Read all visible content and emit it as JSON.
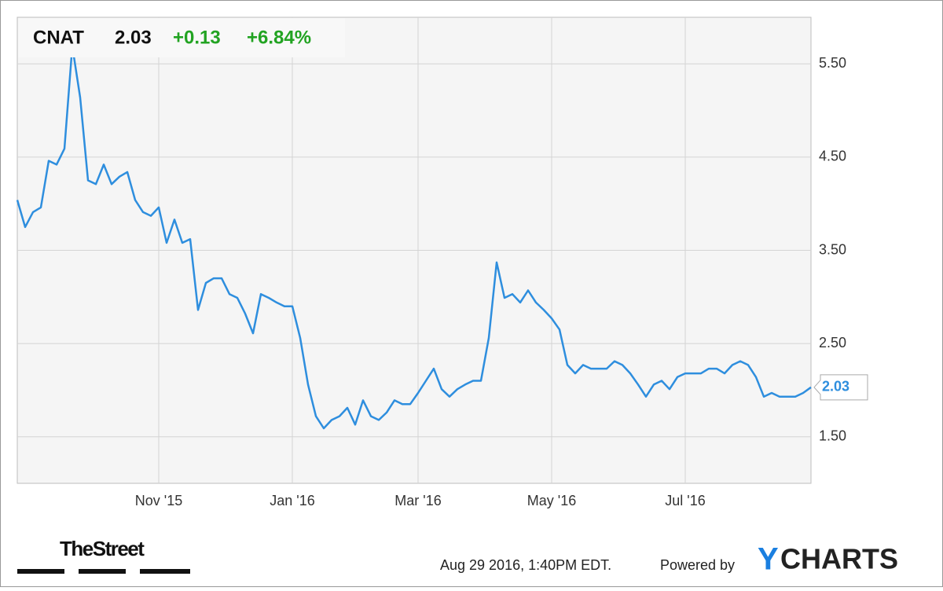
{
  "chart_data": {
    "type": "line",
    "header": {
      "ticker": "CNAT",
      "price": "2.03",
      "change": "+0.13",
      "change_percent": "+6.84%"
    },
    "categories": [
      null,
      null,
      null,
      null,
      null,
      null,
      null,
      null,
      null,
      null,
      null,
      null,
      null,
      null,
      null,
      null,
      null,
      null,
      "Nov '15",
      null,
      null,
      null,
      null,
      null,
      null,
      null,
      null,
      null,
      null,
      null,
      null,
      null,
      null,
      null,
      null,
      "Jan '16",
      null,
      null,
      null,
      null,
      null,
      null,
      null,
      null,
      null,
      null,
      null,
      null,
      null,
      null,
      null,
      "Mar '16",
      null,
      null,
      null,
      null,
      null,
      null,
      null,
      null,
      null,
      null,
      null,
      null,
      null,
      null,
      null,
      null,
      "May '16",
      null,
      null,
      null,
      null,
      null,
      null,
      null,
      null,
      null,
      null,
      null,
      null,
      null,
      null,
      null,
      null,
      "Jul '16",
      null,
      null,
      null,
      null,
      null,
      null,
      null,
      null,
      null,
      null,
      null,
      null,
      null,
      null,
      null,
      null
    ],
    "series": [
      {
        "name": "CNAT",
        "color": "#2e8ede",
        "values": [
          4.04,
          3.75,
          3.91,
          3.96,
          4.46,
          4.42,
          4.59,
          5.69,
          5.14,
          4.25,
          4.21,
          4.42,
          4.21,
          4.29,
          4.34,
          4.04,
          3.91,
          3.87,
          3.96,
          3.58,
          3.83,
          3.58,
          3.62,
          2.86,
          3.15,
          3.2,
          3.2,
          3.03,
          2.99,
          2.82,
          2.61,
          3.03,
          2.99,
          2.94,
          2.9,
          2.9,
          2.56,
          2.06,
          1.72,
          1.59,
          1.68,
          1.72,
          1.81,
          1.63,
          1.89,
          1.72,
          1.68,
          1.76,
          1.89,
          1.85,
          1.85,
          1.97,
          2.1,
          2.23,
          2.01,
          1.93,
          2.01,
          2.06,
          2.1,
          2.1,
          2.56,
          3.37,
          2.99,
          3.03,
          2.94,
          3.07,
          2.94,
          2.86,
          2.77,
          2.65,
          2.27,
          2.18,
          2.27,
          2.23,
          2.23,
          2.23,
          2.31,
          2.27,
          2.18,
          2.06,
          1.93,
          2.06,
          2.1,
          2.01,
          2.14,
          2.18,
          2.18,
          2.18,
          2.23,
          2.23,
          2.18,
          2.27,
          2.31,
          2.27,
          2.14,
          1.93,
          1.97,
          1.93,
          1.93,
          1.93,
          1.97,
          2.03
        ]
      }
    ],
    "ylim": [
      1,
      6
    ],
    "yticks": [
      {
        "value": 1.5,
        "label": "1.50"
      },
      {
        "value": 2.5,
        "label": "2.50"
      },
      {
        "value": 3.5,
        "label": "3.50"
      },
      {
        "value": 4.5,
        "label": "4.50"
      },
      {
        "value": 5.5,
        "label": "5.50"
      }
    ],
    "grid": true
  },
  "footer": {
    "source_logo": "TheStreet",
    "timestamp": "Aug 29 2016, 1:40PM EDT.",
    "powered_by": "Powered by",
    "brand_initial": "Y",
    "brand_rest": "CHARTS"
  }
}
